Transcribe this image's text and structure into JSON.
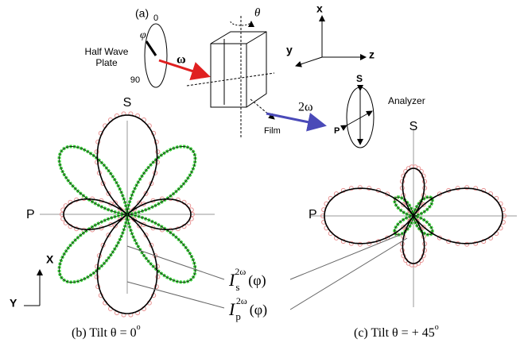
{
  "panel_a": {
    "label": "(a)",
    "waveplate": {
      "title": "Half Wave Plate",
      "top": "0",
      "bottom": "90",
      "angle": "φ"
    },
    "input_beam": "ω",
    "tilt": "θ",
    "axes": {
      "x": "x",
      "y": "y",
      "z": "z"
    },
    "output_beam": "2ω",
    "analyzer": {
      "title": "Analyzer",
      "s": "S",
      "p": "P"
    },
    "film": "Film"
  },
  "panel_b": {
    "s": "S",
    "p": "P",
    "caption": {
      "text": "(b) Tilt θ = 0",
      "sup": "o"
    }
  },
  "panel_c": {
    "s": "S",
    "p": "P",
    "caption": {
      "text": "(c) Tilt θ = + 45",
      "sup": "o"
    }
  },
  "lab_axes": {
    "x": "X",
    "y": "Y"
  },
  "legend": [
    {
      "symbol": "I",
      "sub": "s",
      "sup": "2ω",
      "arg": "(φ)"
    },
    {
      "symbol": "I",
      "sub": "p",
      "sup": "2ω",
      "arg": "(φ)"
    }
  ]
}
